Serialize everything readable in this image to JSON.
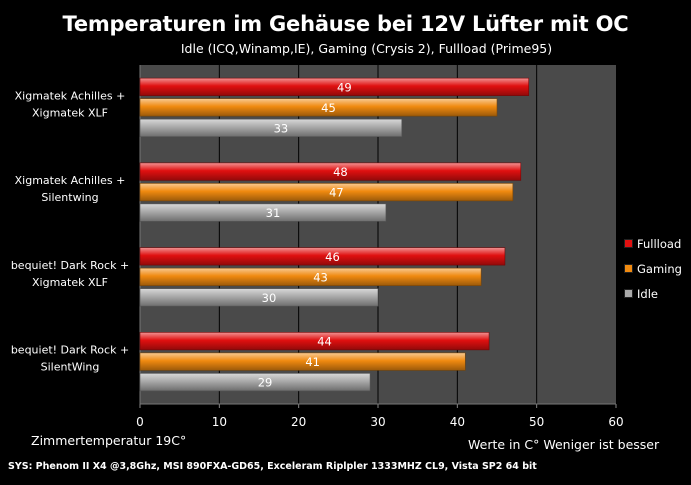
{
  "chart_data": {
    "type": "bar",
    "orientation": "horizontal",
    "title": "Temperaturen im Gehäuse bei 12V Lüfter mit OC",
    "subtitle": "Idle (ICQ,Winamp,IE), Gaming (Crysis 2), Fullload (Prime95)",
    "categories": [
      "Xigmatek Achilles + Xigmatek XLF",
      "Xigmatek Achilles + Silentwing",
      "bequiet! Dark Rock + Xigmatek XLF",
      "bequiet! Dark Rock + SilentWing"
    ],
    "category_lines": [
      [
        "Xigmatek Achilles +",
        "Xigmatek XLF"
      ],
      [
        "Xigmatek Achilles +",
        "Silentwing"
      ],
      [
        "bequiet! Dark Rock +",
        "Xigmatek XLF"
      ],
      [
        "bequiet! Dark Rock +",
        "SilentWing"
      ]
    ],
    "series": [
      {
        "name": "Fullload",
        "color": "#e01010",
        "values": [
          49,
          48,
          46,
          44
        ]
      },
      {
        "name": "Gaming",
        "color": "#f08a10",
        "values": [
          45,
          47,
          43,
          41
        ]
      },
      {
        "name": "Idle",
        "color": "#a9a9a9",
        "values": [
          33,
          31,
          30,
          29
        ]
      }
    ],
    "xlim": [
      0,
      60
    ],
    "xticks": [
      0,
      10,
      20,
      30,
      40,
      50,
      60
    ],
    "grid": true,
    "legend_position": "right",
    "plot_background": "#4a4a4a"
  },
  "notes": {
    "room_temp": "Zimmertemperatur 19C°",
    "units": "Werte in C° Weniger ist besser",
    "system": "SYS: Phenom II X4 @3,8Ghz, MSI 890FXA-GD65, Exceleram Riplpler 1333MHZ CL9, Vista SP2 64 bit"
  }
}
